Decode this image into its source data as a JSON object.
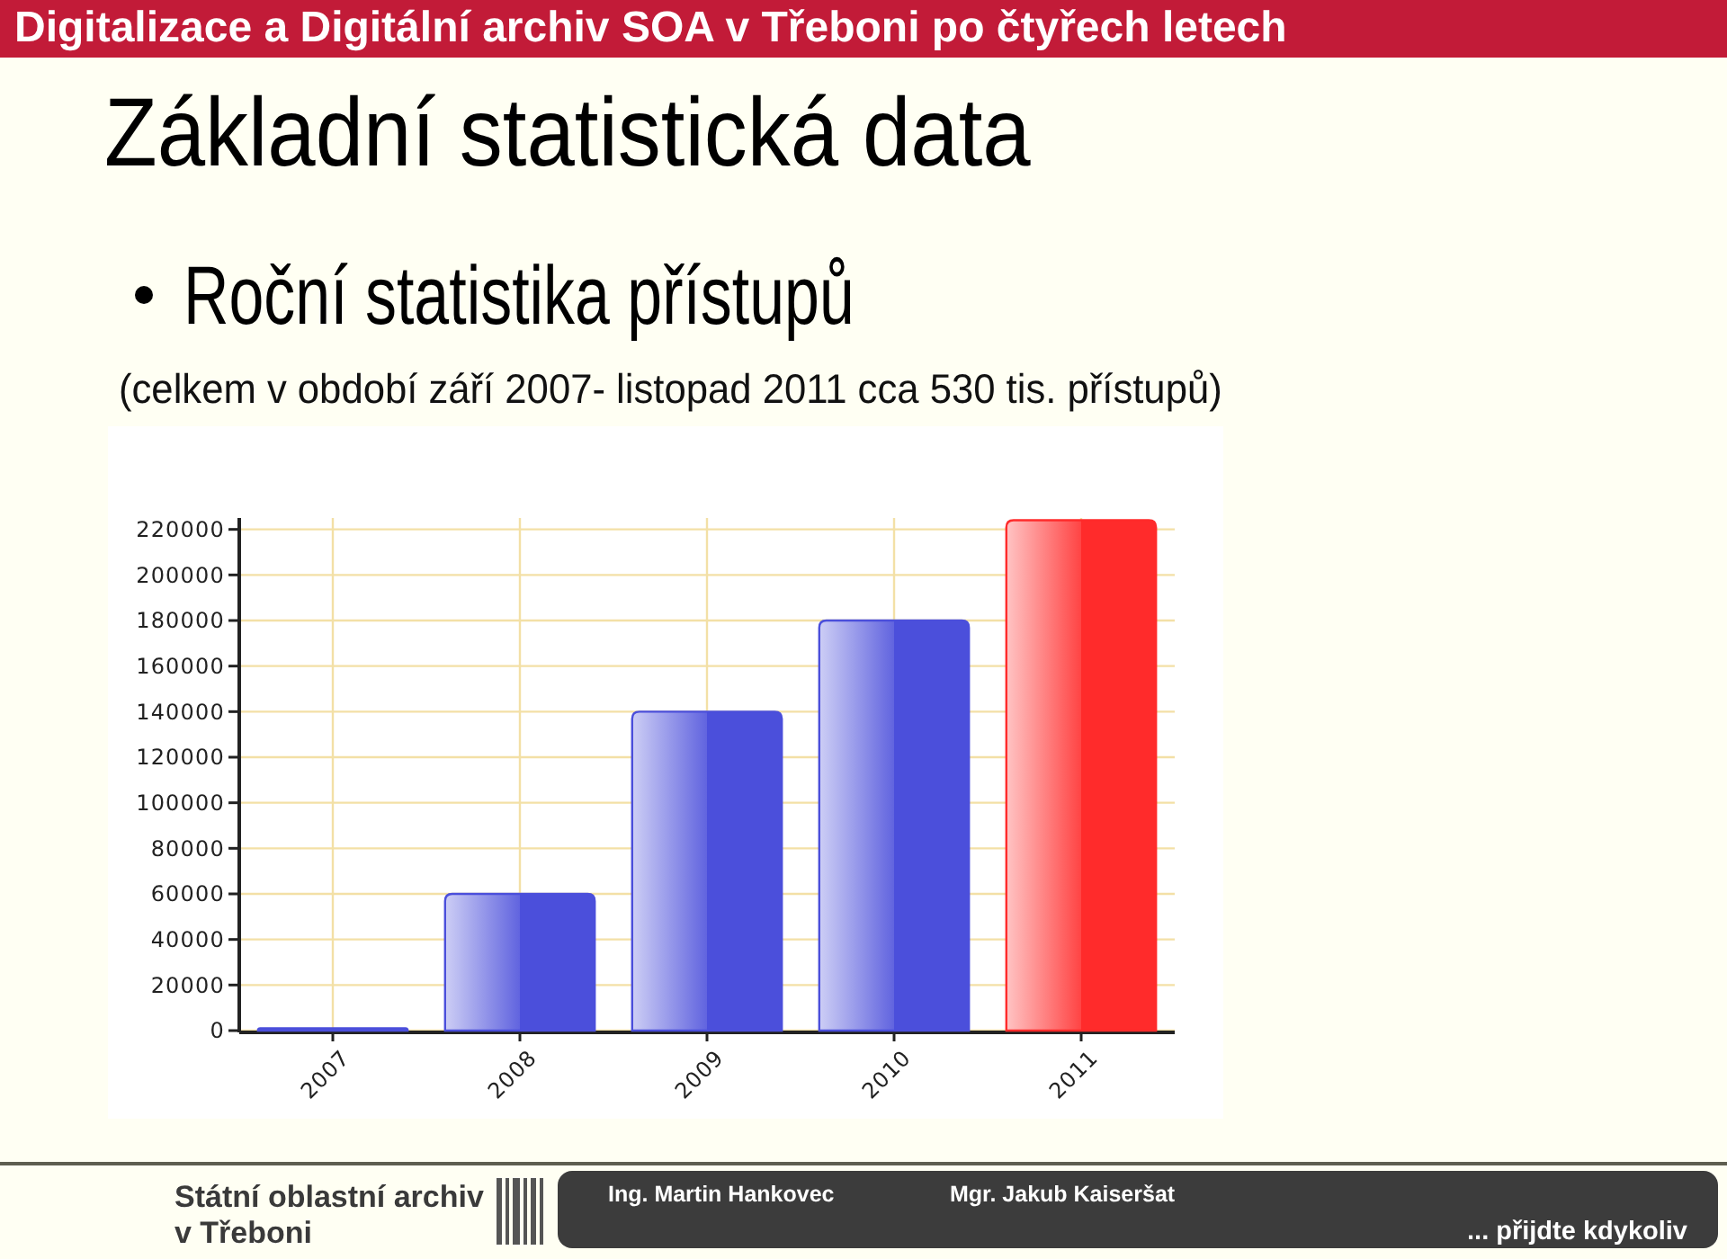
{
  "chart_data": {
    "type": "bar",
    "title": "Základní statistická data",
    "subtitle": "Roční statistika přístupů",
    "annotations": [
      "Digitalizace a Digitální archiv SOA v Třeboni po čtyřech letech",
      "(celkem v období září 2007- listopad 2011 cca 530 tis. přístupů)",
      "Státní oblastní archiv",
      "v Třeboni",
      "Ing. Martin Hankovec",
      "Mgr. Jakub Kaiseršat",
      "... přijdte kdykoliv"
    ],
    "categories": [
      "2007",
      "2008",
      "2009",
      "2010",
      "2011"
    ],
    "values": [
      1000,
      60000,
      140000,
      180000,
      224000
    ],
    "colors": [
      "#4b4fdb",
      "#4b4fdb",
      "#4b4fdb",
      "#4b4fdb",
      "#ff2b2b"
    ],
    "ylim": [
      0,
      225000
    ],
    "yticks": [
      0,
      20000,
      40000,
      60000,
      80000,
      100000,
      120000,
      140000,
      160000,
      180000,
      200000,
      220000
    ],
    "grid": true
  }
}
